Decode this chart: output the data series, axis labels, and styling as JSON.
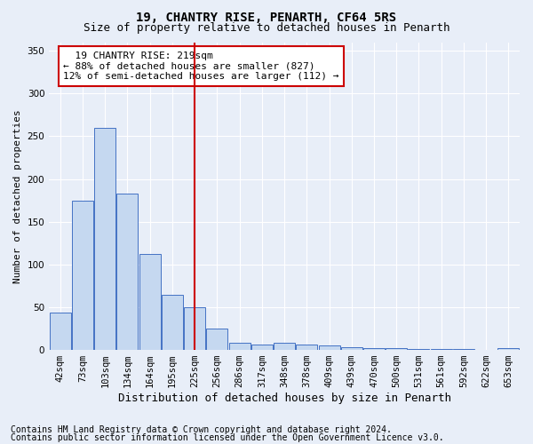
{
  "title1": "19, CHANTRY RISE, PENARTH, CF64 5RS",
  "title2": "Size of property relative to detached houses in Penarth",
  "xlabel": "Distribution of detached houses by size in Penarth",
  "ylabel": "Number of detached properties",
  "categories": [
    "42sqm",
    "73sqm",
    "103sqm",
    "134sqm",
    "164sqm",
    "195sqm",
    "225sqm",
    "256sqm",
    "286sqm",
    "317sqm",
    "348sqm",
    "378sqm",
    "409sqm",
    "439sqm",
    "470sqm",
    "500sqm",
    "531sqm",
    "561sqm",
    "592sqm",
    "622sqm",
    "653sqm"
  ],
  "values": [
    44,
    175,
    260,
    183,
    112,
    65,
    50,
    25,
    8,
    6,
    8,
    6,
    5,
    3,
    2,
    2,
    1,
    1,
    1,
    0,
    2
  ],
  "bar_color": "#c5d8f0",
  "bar_edge_color": "#4472c4",
  "vline_x": 6.0,
  "vline_color": "#cc0000",
  "annotation_text": "  19 CHANTRY RISE: 219sqm  \n← 88% of detached houses are smaller (827)\n12% of semi-detached houses are larger (112) →",
  "annotation_box_color": "#ffffff",
  "annotation_box_edge": "#cc0000",
  "ylim": [
    0,
    360
  ],
  "yticks": [
    0,
    50,
    100,
    150,
    200,
    250,
    300,
    350
  ],
  "footer1": "Contains HM Land Registry data © Crown copyright and database right 2024.",
  "footer2": "Contains public sector information licensed under the Open Government Licence v3.0.",
  "bg_color": "#e8eef8",
  "plot_bg_color": "#e8eef8",
  "title1_fontsize": 10,
  "title2_fontsize": 9,
  "xlabel_fontsize": 9,
  "ylabel_fontsize": 8,
  "tick_fontsize": 7.5,
  "footer_fontsize": 7,
  "ann_fontsize": 8
}
